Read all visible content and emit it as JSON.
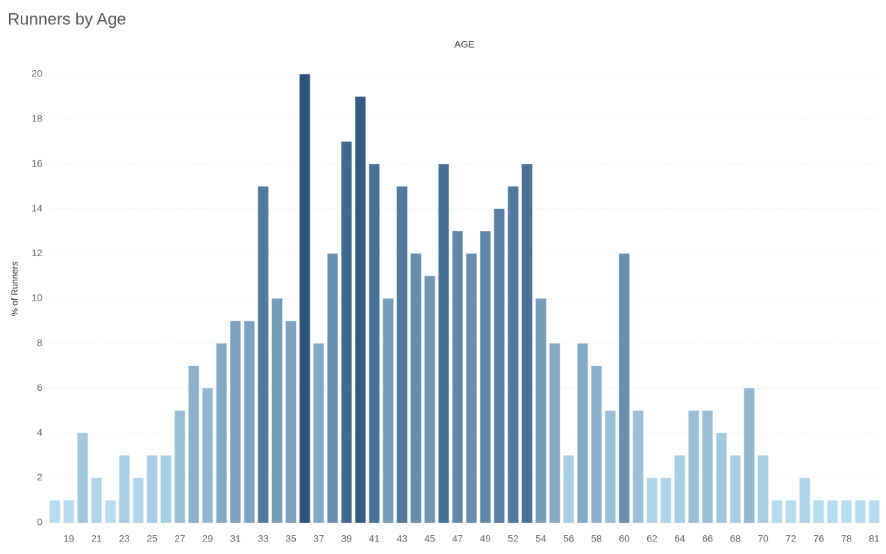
{
  "chart_data": {
    "type": "bar",
    "title": "Runners by Age",
    "x_label": "AGE",
    "y_label": "% of Runners",
    "categories": [
      null,
      "19",
      null,
      "21",
      null,
      "23",
      null,
      "25",
      null,
      "27",
      null,
      "29",
      null,
      "31",
      null,
      "33",
      null,
      "35",
      null,
      "37",
      null,
      "39",
      null,
      "41",
      null,
      "43",
      null,
      "45",
      null,
      "47",
      null,
      "49",
      null,
      "52",
      null,
      "54",
      null,
      "56",
      null,
      "58",
      null,
      "60",
      null,
      "62",
      null,
      "64",
      null,
      "66",
      null,
      "68",
      null,
      "70",
      null,
      "72",
      null,
      "76",
      null,
      "78",
      null,
      "81"
    ],
    "values": [
      1,
      1,
      4,
      2,
      1,
      3,
      2,
      3,
      3,
      5,
      7,
      6,
      8,
      9,
      9,
      15,
      10,
      9,
      20,
      8,
      12,
      17,
      19,
      16,
      10,
      15,
      12,
      11,
      16,
      13,
      12,
      13,
      14,
      15,
      16,
      10,
      8,
      3,
      8,
      7,
      5,
      12,
      5,
      2,
      2,
      3,
      5,
      5,
      4,
      3,
      6,
      3,
      1,
      1,
      2,
      1,
      1,
      1,
      1,
      1
    ],
    "color_range": [
      "#b5dcf1",
      "#2b5580"
    ],
    "ylim": [
      0,
      20.4
    ],
    "yticks": [
      0,
      2,
      4,
      6,
      8,
      10,
      12,
      14,
      16,
      18,
      20
    ],
    "grid": true
  }
}
